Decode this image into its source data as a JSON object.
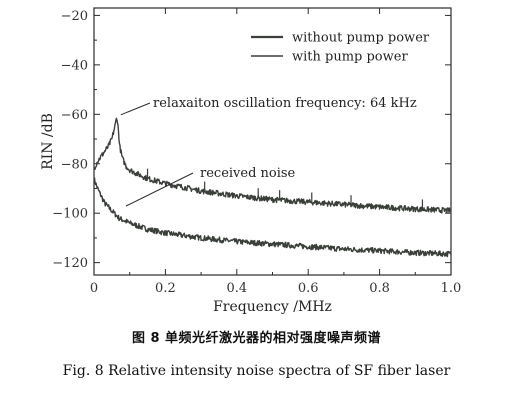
{
  "chart_data": {
    "type": "line",
    "xlabel": "Frequency /MHz",
    "ylabel": "RIN /dB",
    "xlim": [
      0,
      1.0
    ],
    "ylim": [
      -125,
      -17
    ],
    "xticks": [
      "0",
      "0.2",
      "0.4",
      "0.6",
      "0.8",
      "1.0"
    ],
    "yticks": [
      "-20",
      "-40",
      "-60",
      "-80",
      "-100",
      "-120"
    ],
    "legend_position": "top-right",
    "series": [
      {
        "name": "without pump power",
        "color": "#3a3f3a",
        "x": [
          0,
          0.01,
          0.02,
          0.03,
          0.05,
          0.07,
          0.1,
          0.15,
          0.2,
          0.3,
          0.4,
          0.5,
          0.6,
          0.7,
          0.8,
          0.9,
          1.0
        ],
        "y": [
          -86,
          -90,
          -93,
          -96,
          -99,
          -102,
          -104,
          -106.5,
          -108,
          -110,
          -111.5,
          -112.5,
          -113.5,
          -114.5,
          -115.2,
          -116,
          -116.5
        ]
      },
      {
        "name": "with pump power",
        "color": "#3a3f3a",
        "x": [
          0,
          0.01,
          0.02,
          0.03,
          0.04,
          0.05,
          0.055,
          0.06,
          0.064,
          0.068,
          0.072,
          0.08,
          0.09,
          0.1,
          0.12,
          0.15,
          0.2,
          0.3,
          0.4,
          0.5,
          0.6,
          0.7,
          0.8,
          0.9,
          1.0
        ],
        "y": [
          -82,
          -79,
          -77,
          -75,
          -73,
          -70,
          -67,
          -64,
          -61,
          -66,
          -73,
          -78,
          -81,
          -82.5,
          -84,
          -86,
          -88,
          -91,
          -93,
          -94.5,
          -95.5,
          -96.5,
          -97.5,
          -98.3,
          -99
        ]
      }
    ],
    "annotations": [
      {
        "text": "relaxaiton oscillation frequency: 64 kHz",
        "x": 0.064,
        "y": -61
      },
      {
        "text": "received noise",
        "x": 0.1,
        "y": -104
      }
    ]
  },
  "caption": {
    "cn": "图 8   单频光纤激光器的相对强度噪声频谱",
    "en": "Fig. 8   Relative intensity noise spectra of SF fiber laser"
  }
}
